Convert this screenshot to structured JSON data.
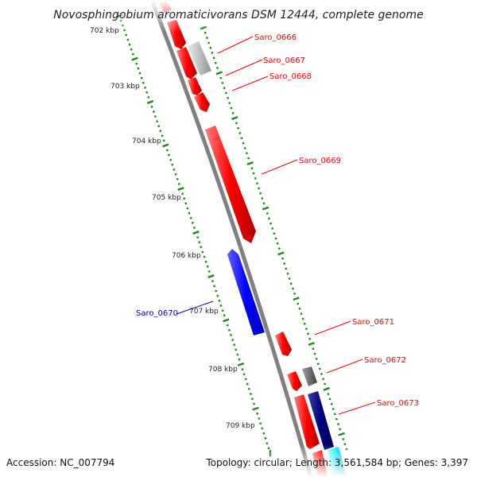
{
  "title": "Novosphingobium aromaticivorans DSM 12444, complete genome",
  "footer": {
    "accession": "Accession: NC_007794",
    "stats": "Topology: circular; Length: 3,561,584 bp; Genes: 3,397"
  },
  "ticks": [
    {
      "label": "702 kbp"
    },
    {
      "label": "703 kbp"
    },
    {
      "label": "704 kbp"
    },
    {
      "label": "705 kbp"
    },
    {
      "label": "706 kbp"
    },
    {
      "label": "707 kbp"
    },
    {
      "label": "708 kbp"
    },
    {
      "label": "709 kbp"
    }
  ],
  "genes": [
    {
      "name": "Saro_0666",
      "color": "#ff0000"
    },
    {
      "name": "Saro_0667",
      "color": "#ff0000"
    },
    {
      "name": "Saro_0668",
      "color": "#ff0000"
    },
    {
      "name": "Saro_0669",
      "color": "#ff0000"
    },
    {
      "name": "Saro_0670",
      "color": "#0000aa"
    },
    {
      "name": "Saro_0671",
      "color": "#ff0000"
    },
    {
      "name": "Saro_0672",
      "color": "#ff0000"
    },
    {
      "name": "Saro_0673",
      "color": "#ff0000"
    }
  ],
  "colors": {
    "forward_cds": "#ff0000",
    "reverse_cds": "#0000ff",
    "reverse_dark": "#000080",
    "grey_feature": "#b0b0b0",
    "dark_grey_feature": "#707070",
    "cyan_feature": "#00e5ff",
    "backbone": "#808080",
    "tick_green": "#1a8a1a"
  }
}
